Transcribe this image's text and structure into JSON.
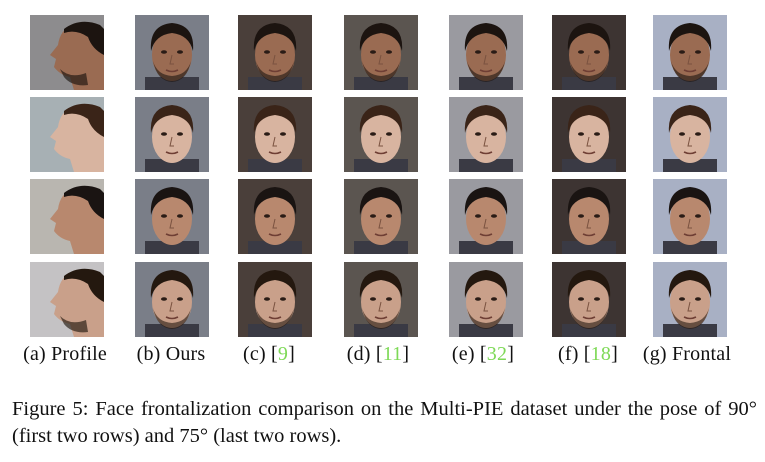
{
  "columns": [
    {
      "label_prefix": "(a) Profile",
      "ref": "",
      "label_suffix": ""
    },
    {
      "label_prefix": "(b) Ours",
      "ref": "",
      "label_suffix": ""
    },
    {
      "label_prefix": "(c)  [",
      "ref": "9",
      "label_suffix": "]"
    },
    {
      "label_prefix": "(d)  [",
      "ref": "11",
      "label_suffix": "]"
    },
    {
      "label_prefix": "(e)  [",
      "ref": "32",
      "label_suffix": "]"
    },
    {
      "label_prefix": "(f)  [",
      "ref": "18",
      "label_suffix": "]"
    },
    {
      "label_prefix": "(g)  Frontal",
      "ref": "",
      "label_suffix": ""
    }
  ],
  "caption": "Figure 5: Face frontalization comparison on the Multi-PIE dataset under the pose of 90° (first two rows) and 75° (last two rows).",
  "colors": {
    "reference": "#7ed957",
    "text": "#111111"
  },
  "rows": [
    {
      "pose": "profile-left",
      "hair": "#1c1410",
      "skin": "#9a6b52",
      "bg": "#8d8c8e",
      "beard": true
    },
    {
      "pose": "profile-left",
      "hair": "#3a2418",
      "skin": "#d8b4a0",
      "bg": "#a7b0b4",
      "beard": false
    },
    {
      "pose": "profile-left",
      "hair": "#1a1412",
      "skin": "#b8886e",
      "bg": "#b9b6b0",
      "beard": false
    },
    {
      "pose": "profile-left",
      "hair": "#24180f",
      "skin": "#c9a08a",
      "bg": "#c4c2c4",
      "beard": true
    }
  ]
}
